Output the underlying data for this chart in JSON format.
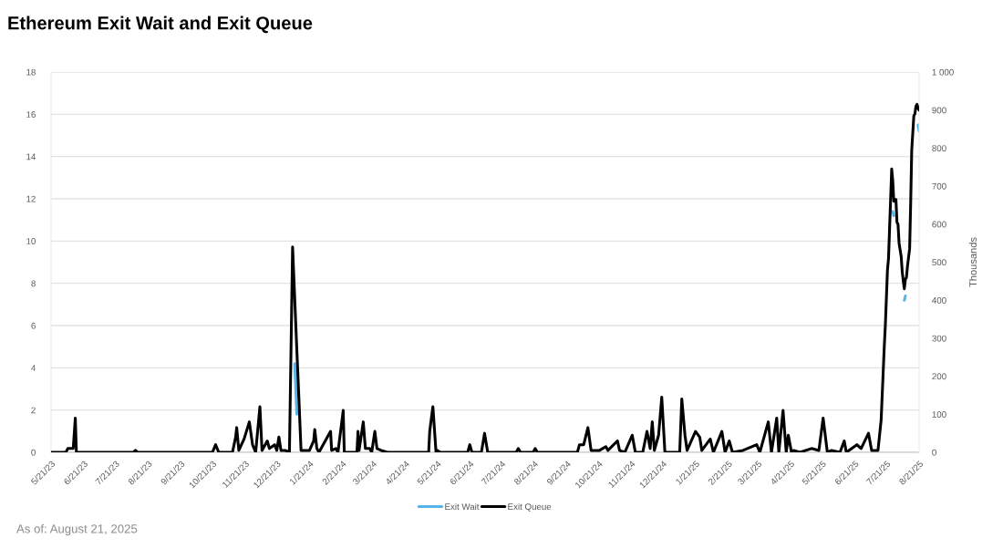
{
  "chart_data": {
    "type": "line",
    "title": "Ethereum Exit Wait and Exit Queue",
    "annotations": [
      "As of: August 21, 2025"
    ],
    "x": [
      "2023-05-21",
      "2023-06-04",
      "2023-06-06",
      "2023-06-11",
      "2023-06-13",
      "2023-06-14",
      "2023-08-07",
      "2023-08-09",
      "2023-08-11",
      "2023-10-21",
      "2023-10-24",
      "2023-10-27",
      "2023-11-09",
      "2023-11-12",
      "2023-11-13",
      "2023-11-15",
      "2023-11-20",
      "2023-11-25",
      "2023-11-28",
      "2023-12-01",
      "2023-12-05",
      "2023-12-07",
      "2023-12-12",
      "2023-12-14",
      "2023-12-19",
      "2023-12-21",
      "2023-12-23",
      "2023-12-25",
      "2023-12-29",
      "2024-01-02",
      "2024-01-05",
      "2024-01-07",
      "2024-01-09",
      "2024-01-11",
      "2024-01-13",
      "2024-01-21",
      "2024-01-25",
      "2024-01-26",
      "2024-01-28",
      "2024-01-30",
      "2024-02-10",
      "2024-02-11",
      "2024-02-15",
      "2024-02-17",
      "2024-02-22",
      "2024-02-23",
      "2024-03-06",
      "2024-03-07",
      "2024-03-08",
      "2024-03-12",
      "2024-03-14",
      "2024-03-18",
      "2024-03-20",
      "2024-03-23",
      "2024-03-25",
      "2024-03-29",
      "2024-04-04",
      "2024-05-13",
      "2024-05-14",
      "2024-05-17",
      "2024-05-20",
      "2024-05-21",
      "2024-05-24",
      "2024-06-19",
      "2024-06-21",
      "2024-06-23",
      "2024-07-02",
      "2024-07-05",
      "2024-07-08",
      "2024-08-04",
      "2024-08-06",
      "2024-08-08",
      "2024-08-20",
      "2024-08-22",
      "2024-08-24",
      "2024-10-01",
      "2024-10-03",
      "2024-10-07",
      "2024-10-11",
      "2024-10-14",
      "2024-10-22",
      "2024-10-28",
      "2024-10-30",
      "2024-11-08",
      "2024-11-10",
      "2024-11-15",
      "2024-11-22",
      "2024-11-25",
      "2024-12-02",
      "2024-12-06",
      "2024-12-09",
      "2024-12-11",
      "2024-12-13",
      "2024-12-17",
      "2024-12-20",
      "2024-12-23",
      "2025-01-06",
      "2025-01-08",
      "2025-01-11",
      "2025-01-13",
      "2025-01-21",
      "2025-01-25",
      "2025-01-27",
      "2025-02-04",
      "2025-02-07",
      "2025-02-15",
      "2025-02-18",
      "2025-02-22",
      "2025-02-25",
      "2025-03-07",
      "2025-03-20",
      "2025-03-23",
      "2025-03-31",
      "2025-04-03",
      "2025-04-08",
      "2025-04-10",
      "2025-04-14",
      "2025-04-17",
      "2025-04-19",
      "2025-04-22",
      "2025-04-24",
      "2025-04-30",
      "2025-05-11",
      "2025-05-18",
      "2025-05-22",
      "2025-05-26",
      "2025-05-30",
      "2025-06-07",
      "2025-06-11",
      "2025-06-13",
      "2025-06-23",
      "2025-06-27",
      "2025-07-04",
      "2025-07-07",
      "2025-07-13",
      "2025-07-16",
      "2025-07-19",
      "2025-07-20",
      "2025-07-22",
      "2025-07-23",
      "2025-07-26",
      "2025-07-27",
      "2025-07-28",
      "2025-07-29",
      "2025-07-30",
      "2025-07-31",
      "2025-08-01",
      "2025-08-02",
      "2025-08-04",
      "2025-08-05",
      "2025-08-06",
      "2025-08-07",
      "2025-08-08",
      "2025-08-09",
      "2025-08-10",
      "2025-08-12",
      "2025-08-13",
      "2025-08-14",
      "2025-08-16",
      "2025-08-17",
      "2025-08-18",
      "2025-08-19",
      "2025-08-20",
      "2025-08-21"
    ],
    "series": [
      {
        "name": "Exit Wait",
        "color": "#56b4e9",
        "axis": "y",
        "values": [
          null,
          null,
          null,
          null,
          null,
          null,
          null,
          null,
          null,
          null,
          null,
          null,
          null,
          null,
          null,
          null,
          null,
          null,
          null,
          null,
          null,
          null,
          null,
          null,
          null,
          null,
          null,
          null,
          null,
          null,
          null,
          4.2,
          1.8,
          null,
          null,
          null,
          null,
          null,
          null,
          null,
          null,
          null,
          null,
          null,
          null,
          null,
          null,
          null,
          null,
          null,
          null,
          null,
          null,
          null,
          null,
          null,
          null,
          null,
          null,
          null,
          null,
          null,
          null,
          null,
          null,
          null,
          null,
          null,
          null,
          null,
          null,
          null,
          null,
          null,
          null,
          null,
          null,
          null,
          null,
          null,
          null,
          null,
          null,
          null,
          null,
          null,
          null,
          null,
          null,
          null,
          null,
          null,
          null,
          null,
          null,
          null,
          null,
          null,
          null,
          null,
          null,
          null,
          null,
          null,
          null,
          null,
          null,
          null,
          null,
          null,
          null,
          null,
          null,
          null,
          null,
          null,
          null,
          null,
          null,
          null,
          null,
          null,
          null,
          null,
          null,
          null,
          null,
          null,
          null,
          null,
          null,
          null,
          null,
          null,
          null,
          null,
          null,
          null,
          null,
          null,
          null,
          11.4,
          11.2,
          null,
          null,
          null,
          null,
          null,
          null,
          null,
          null,
          7.2,
          7.4,
          null,
          null,
          null,
          null,
          null,
          null,
          null,
          null,
          null,
          15.5,
          15.2
        ]
      },
      {
        "name": "Exit Queue",
        "color": "#000000",
        "axis": "y2",
        "values": [
          0,
          0,
          10,
          10,
          90,
          0,
          0,
          5,
          0,
          0,
          20,
          0,
          0,
          40,
          65,
          5,
          35,
          80,
          20,
          0,
          120,
          5,
          30,
          10,
          20,
          5,
          40,
          5,
          5,
          0,
          540,
          405,
          270,
          140,
          5,
          5,
          30,
          60,
          10,
          0,
          55,
          5,
          10,
          0,
          110,
          0,
          0,
          55,
          5,
          80,
          10,
          10,
          0,
          55,
          10,
          5,
          0,
          0,
          55,
          120,
          0,
          5,
          0,
          0,
          20,
          0,
          0,
          50,
          0,
          0,
          10,
          0,
          0,
          10,
          0,
          0,
          20,
          20,
          65,
          5,
          5,
          15,
          5,
          30,
          5,
          0,
          45,
          0,
          0,
          55,
          10,
          80,
          5,
          45,
          145,
          0,
          0,
          140,
          45,
          5,
          55,
          40,
          5,
          35,
          0,
          55,
          0,
          30,
          0,
          5,
          20,
          0,
          80,
          0,
          90,
          0,
          110,
          0,
          45,
          0,
          5,
          0,
          10,
          5,
          90,
          0,
          5,
          0,
          30,
          0,
          20,
          10,
          50,
          5,
          5,
          85,
          280,
          335,
          480,
          510,
          745,
          715,
          660,
          665,
          665,
          605,
          600,
          550,
          515,
          475,
          450,
          430,
          455,
          460,
          490,
          535,
          655,
          795,
          885,
          890,
          910,
          915,
          905,
          900
        ]
      }
    ],
    "xlim": [
      "2023-05-21",
      "2025-08-21"
    ],
    "xticks": [
      {
        "value": "2023-05-21",
        "label": "5/21/23"
      },
      {
        "value": "2023-06-21",
        "label": "6/21/23"
      },
      {
        "value": "2023-07-21",
        "label": "7/21/23"
      },
      {
        "value": "2023-08-21",
        "label": "8/21/23"
      },
      {
        "value": "2023-09-21",
        "label": "9/21/23"
      },
      {
        "value": "2023-10-21",
        "label": "10/21/23"
      },
      {
        "value": "2023-11-21",
        "label": "11/21/23"
      },
      {
        "value": "2023-12-21",
        "label": "12/21/23"
      },
      {
        "value": "2024-01-21",
        "label": "1/21/24"
      },
      {
        "value": "2024-02-21",
        "label": "2/21/24"
      },
      {
        "value": "2024-03-21",
        "label": "3/21/24"
      },
      {
        "value": "2024-04-21",
        "label": "4/21/24"
      },
      {
        "value": "2024-05-21",
        "label": "5/21/24"
      },
      {
        "value": "2024-06-21",
        "label": "6/21/24"
      },
      {
        "value": "2024-07-21",
        "label": "7/21/24"
      },
      {
        "value": "2024-08-21",
        "label": "8/21/24"
      },
      {
        "value": "2024-09-21",
        "label": "9/21/24"
      },
      {
        "value": "2024-10-21",
        "label": "10/21/24"
      },
      {
        "value": "2024-11-21",
        "label": "11/21/24"
      },
      {
        "value": "2024-12-21",
        "label": "12/21/24"
      },
      {
        "value": "2025-01-21",
        "label": "1/21/25"
      },
      {
        "value": "2025-02-21",
        "label": "2/21/25"
      },
      {
        "value": "2025-03-21",
        "label": "3/21/25"
      },
      {
        "value": "2025-04-21",
        "label": "4/21/25"
      },
      {
        "value": "2025-05-21",
        "label": "5/21/25"
      },
      {
        "value": "2025-06-21",
        "label": "6/21/25"
      },
      {
        "value": "2025-07-21",
        "label": "7/21/25"
      },
      {
        "value": "2025-08-21",
        "label": "8/21/25"
      }
    ],
    "ylim": [
      0,
      18
    ],
    "yticks": [
      0,
      2,
      4,
      6,
      8,
      10,
      12,
      14,
      16,
      18
    ],
    "y2lim": [
      0,
      1000
    ],
    "y2ticks": [
      0,
      100,
      200,
      300,
      400,
      500,
      600,
      700,
      800,
      900,
      {
        "value": 1000,
        "label": "1 000"
      }
    ],
    "y2label": "Thousands",
    "grid": "y",
    "legend": "bottom",
    "line_style": "solid"
  }
}
